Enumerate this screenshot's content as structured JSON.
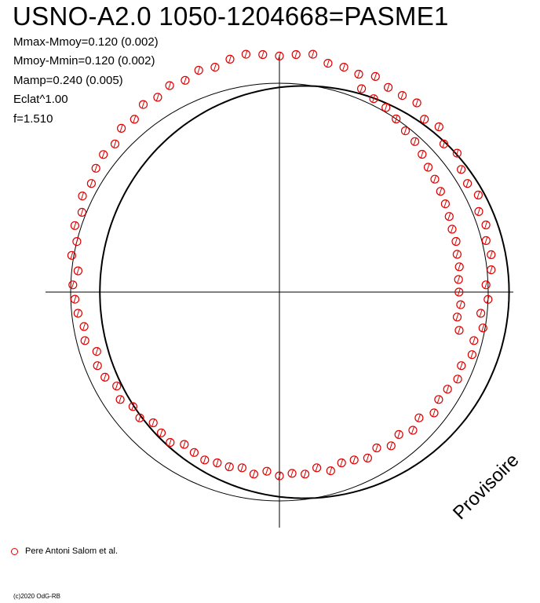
{
  "header": {
    "title": "USNO-A2.0 1050-1204668=PASME1"
  },
  "info_lines": [
    "Mmax-Mmoy=0.120 (0.002)",
    "Mmoy-Mmin=0.120 (0.002)",
    "Mamp=0.240 (0.005)",
    "Eclat^1.00",
    "f=1.510"
  ],
  "legend": {
    "label": "Pere Antoni Salom et al."
  },
  "footer": {
    "copyright": "(c)2020 OdG-RB",
    "watermark": "Provisoire"
  },
  "colors": {
    "points": "#e00000",
    "lines": "#000000"
  },
  "chart_data": {
    "type": "scatter",
    "coordinate_system": "polar",
    "angle_unit": "degrees",
    "reference_circle_radius": 1.0,
    "fit_curve": {
      "mean_radius": 0.98,
      "amplitude": 0.12,
      "phase_deg": 0
    },
    "series": [
      {
        "name": "Pere Antoni Salom et al.",
        "points": [
          [
            262,
            1.15
          ],
          [
            266,
            1.14
          ],
          [
            270,
            1.13
          ],
          [
            274,
            1.14
          ],
          [
            278,
            1.15
          ],
          [
            282,
            1.12
          ],
          [
            286,
            1.12
          ],
          [
            290,
            1.11
          ],
          [
            294,
            1.13
          ],
          [
            298,
            1.11
          ],
          [
            302,
            1.11
          ],
          [
            306,
            1.12
          ],
          [
            310,
            1.08
          ],
          [
            314,
            1.1
          ],
          [
            318,
            1.06
          ],
          [
            322,
            1.08
          ],
          [
            326,
            1.05
          ],
          [
            330,
            1.04
          ],
          [
            334,
            1.06
          ],
          [
            338,
            1.03
          ],
          [
            342,
            1.04
          ],
          [
            346,
            1.02
          ],
          [
            350,
            1.03
          ],
          [
            354,
            1.02
          ],
          [
            358,
            0.99
          ],
          [
            2,
            1.0
          ],
          [
            6,
            0.97
          ],
          [
            10,
            0.99
          ],
          [
            14,
            0.96
          ],
          [
            18,
            0.97
          ],
          [
            22,
            0.94
          ],
          [
            26,
            0.95
          ],
          [
            30,
            0.93
          ],
          [
            34,
            0.92
          ],
          [
            38,
            0.94
          ],
          [
            42,
            0.9
          ],
          [
            46,
            0.92
          ],
          [
            50,
            0.89
          ],
          [
            54,
            0.91
          ],
          [
            58,
            0.88
          ],
          [
            62,
            0.9
          ],
          [
            66,
            0.88
          ],
          [
            70,
            0.87
          ],
          [
            74,
            0.89
          ],
          [
            78,
            0.86
          ],
          [
            82,
            0.88
          ],
          [
            86,
            0.87
          ],
          [
            90,
            0.88
          ],
          [
            94,
            0.86
          ],
          [
            98,
            0.88
          ],
          [
            102,
            0.86
          ],
          [
            106,
            0.87
          ],
          [
            110,
            0.87
          ],
          [
            114,
            0.88
          ],
          [
            118,
            0.87
          ],
          [
            122,
            0.86
          ],
          [
            126,
            0.89
          ],
          [
            130,
            0.88
          ],
          [
            134,
            0.87
          ],
          [
            138,
            0.9
          ],
          [
            142,
            0.89
          ],
          [
            146,
            0.92
          ],
          [
            150,
            0.9
          ],
          [
            154,
            0.93
          ],
          [
            158,
            0.94
          ],
          [
            162,
            0.92
          ],
          [
            166,
            0.96
          ],
          [
            170,
            0.95
          ],
          [
            174,
            0.97
          ],
          [
            178,
            0.98
          ],
          [
            182,
            0.99
          ],
          [
            186,
            0.97
          ],
          [
            190,
            1.01
          ],
          [
            194,
            1.0
          ],
          [
            198,
            1.03
          ],
          [
            202,
            1.02
          ],
          [
            206,
            1.05
          ],
          [
            210,
            1.04
          ],
          [
            214,
            1.06
          ],
          [
            218,
            1.07
          ],
          [
            222,
            1.06
          ],
          [
            226,
            1.09
          ],
          [
            230,
            1.08
          ],
          [
            234,
            1.11
          ],
          [
            238,
            1.1
          ],
          [
            242,
            1.12
          ],
          [
            246,
            1.11
          ],
          [
            250,
            1.13
          ],
          [
            254,
            1.12
          ],
          [
            258,
            1.14
          ],
          [
            304,
            1.0
          ],
          [
            308,
            0.98
          ],
          [
            312,
            0.97
          ],
          [
            316,
            0.95
          ],
          [
            320,
            0.93
          ],
          [
            324,
            0.92
          ],
          [
            328,
            0.91
          ],
          [
            332,
            0.9
          ],
          [
            336,
            0.89
          ],
          [
            340,
            0.88
          ],
          [
            344,
            0.88
          ],
          [
            348,
            0.87
          ],
          [
            352,
            0.87
          ],
          [
            356,
            0.86
          ],
          [
            0,
            0.86
          ],
          [
            4,
            0.87
          ],
          [
            8,
            0.86
          ],
          [
            12,
            0.88
          ],
          [
            300,
            1.02
          ],
          [
            296,
            1.03
          ],
          [
            292,
            1.05
          ]
        ]
      }
    ]
  }
}
